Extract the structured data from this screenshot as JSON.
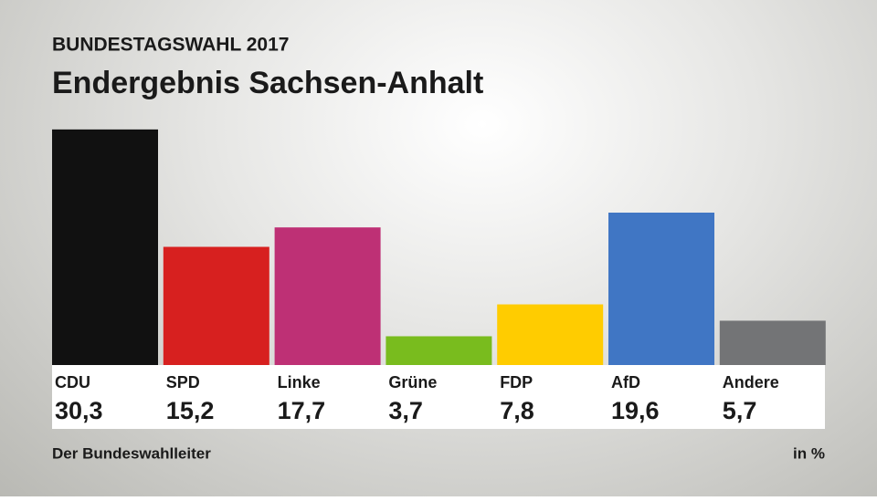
{
  "chart_data": {
    "type": "bar",
    "supertitle": "BUNDESTAGSWAHL 2017",
    "title": "Endergebnis Sachsen-Anhalt",
    "categories": [
      "CDU",
      "SPD",
      "Linke",
      "Grüne",
      "FDP",
      "AfD",
      "Andere"
    ],
    "values": [
      30.3,
      15.2,
      17.7,
      3.7,
      7.8,
      19.6,
      5.7
    ],
    "value_labels": [
      "30,3",
      "15,2",
      "17,7",
      "3,7",
      "7,8",
      "19,6",
      "5,7"
    ],
    "colors": [
      "#111111",
      "#d7201f",
      "#be3075",
      "#79bc1e",
      "#ffcc00",
      "#4076c4",
      "#737476"
    ],
    "source": "Der Bundeswahlleiter",
    "unit": "in %"
  }
}
